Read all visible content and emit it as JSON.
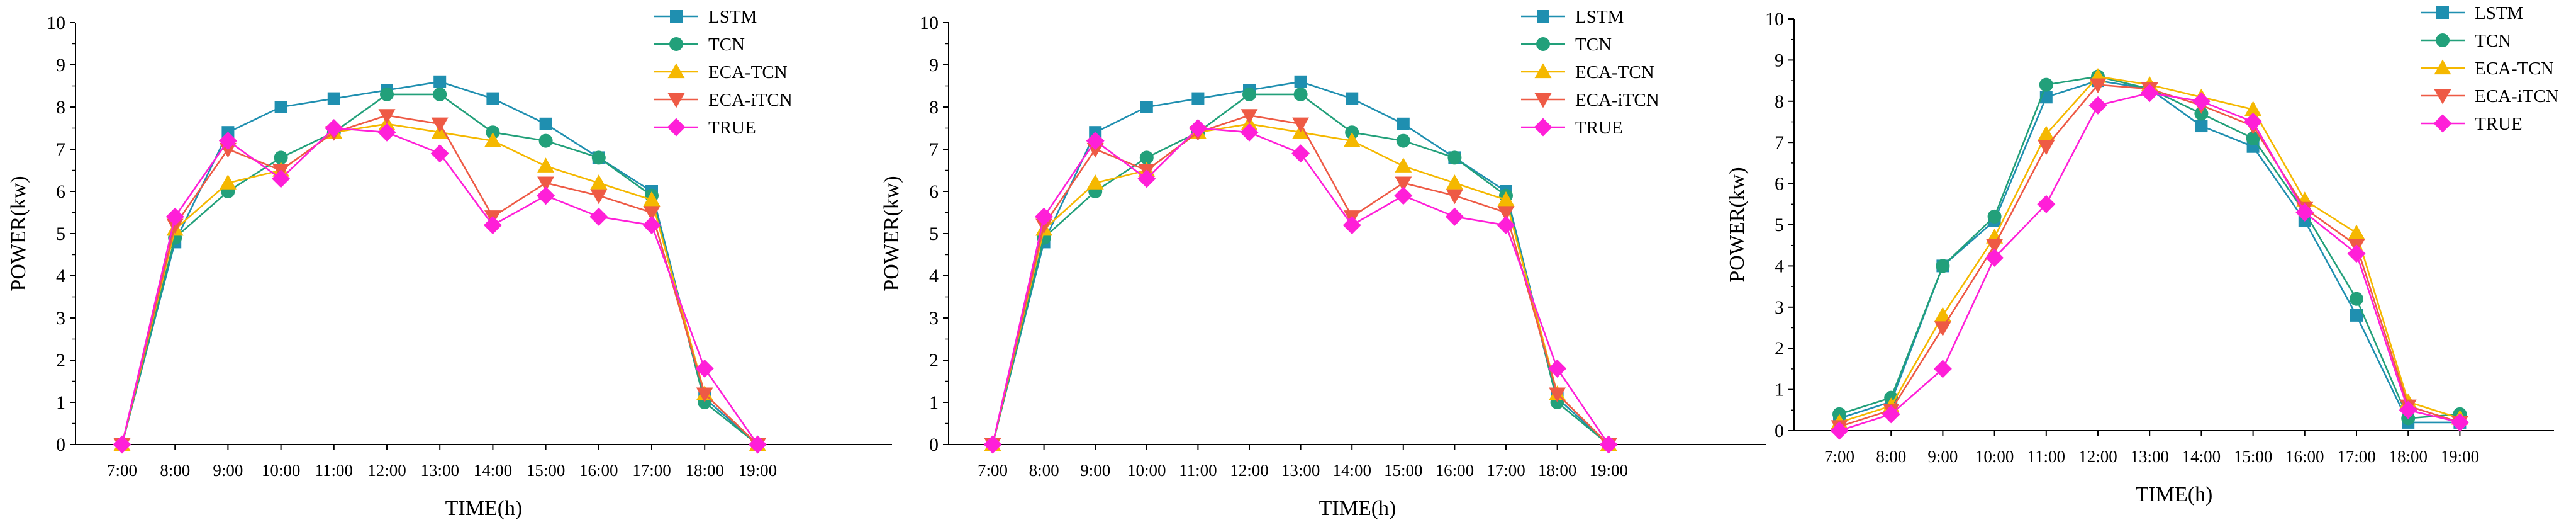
{
  "chart_data": [
    {
      "type": "line",
      "title": "",
      "xlabel": "TIME(h)",
      "ylabel": "POWER(kw)",
      "ylim": [
        0,
        10
      ],
      "yticks": [
        0,
        1,
        2,
        3,
        4,
        5,
        6,
        7,
        8,
        9,
        10
      ],
      "categories": [
        "7:00",
        "8:00",
        "9:00",
        "10:00",
        "11:00",
        "12:00",
        "13:00",
        "14:00",
        "15:00",
        "16:00",
        "17:00",
        "18:00",
        "19:00"
      ],
      "legend_position": "top-right",
      "series": [
        {
          "name": "LSTM",
          "color": "#1f8fb0",
          "marker": "square",
          "values": [
            0,
            4.8,
            7.4,
            8.0,
            8.2,
            8.4,
            8.6,
            8.2,
            7.6,
            6.8,
            6.0,
            1.1,
            0
          ]
        },
        {
          "name": "TCN",
          "color": "#22a07a",
          "marker": "circle",
          "values": [
            0,
            4.9,
            6.0,
            6.8,
            7.4,
            8.3,
            8.3,
            7.4,
            7.2,
            6.8,
            5.9,
            1.0,
            0
          ]
        },
        {
          "name": "ECA-TCN",
          "color": "#f5b800",
          "marker": "triangle-up",
          "values": [
            0,
            5.1,
            6.2,
            6.5,
            7.4,
            7.6,
            7.4,
            7.2,
            6.6,
            6.2,
            5.8,
            1.2,
            0
          ]
        },
        {
          "name": "ECA-iTCN",
          "color": "#ee5a45",
          "marker": "triangle-down",
          "values": [
            0,
            5.2,
            7.0,
            6.5,
            7.4,
            7.8,
            7.6,
            5.4,
            6.2,
            5.9,
            5.5,
            1.2,
            0
          ]
        },
        {
          "name": "TRUE",
          "color": "#ff1fd8",
          "marker": "diamond",
          "values": [
            0,
            5.4,
            7.2,
            6.3,
            7.5,
            7.4,
            6.9,
            5.2,
            5.9,
            5.4,
            5.2,
            1.8,
            0
          ]
        }
      ]
    },
    {
      "type": "line",
      "title": "",
      "xlabel": "TIME(h)",
      "ylabel": "POWER(kw)",
      "ylim": [
        0,
        10
      ],
      "yticks": [
        0,
        1,
        2,
        3,
        4,
        5,
        6,
        7,
        8,
        9,
        10
      ],
      "categories": [
        "7:00",
        "8:00",
        "9:00",
        "10:00",
        "11:00",
        "12:00",
        "13:00",
        "14:00",
        "15:00",
        "16:00",
        "17:00",
        "18:00",
        "19:00"
      ],
      "legend_position": "top-right",
      "series": [
        {
          "name": "LSTM",
          "color": "#1f8fb0",
          "marker": "square",
          "values": [
            0,
            4.8,
            7.4,
            8.0,
            8.2,
            8.4,
            8.6,
            8.2,
            7.6,
            6.8,
            6.0,
            1.1,
            0
          ]
        },
        {
          "name": "TCN",
          "color": "#22a07a",
          "marker": "circle",
          "values": [
            0,
            4.9,
            6.0,
            6.8,
            7.4,
            8.3,
            8.3,
            7.4,
            7.2,
            6.8,
            5.9,
            1.0,
            0
          ]
        },
        {
          "name": "ECA-TCN",
          "color": "#f5b800",
          "marker": "triangle-up",
          "values": [
            0,
            5.1,
            6.2,
            6.5,
            7.4,
            7.6,
            7.4,
            7.2,
            6.6,
            6.2,
            5.8,
            1.2,
            0
          ]
        },
        {
          "name": "ECA-iTCN",
          "color": "#ee5a45",
          "marker": "triangle-down",
          "values": [
            0,
            5.2,
            7.0,
            6.5,
            7.4,
            7.8,
            7.6,
            5.4,
            6.2,
            5.9,
            5.5,
            1.2,
            0
          ]
        },
        {
          "name": "TRUE",
          "color": "#ff1fd8",
          "marker": "diamond",
          "values": [
            0,
            5.4,
            7.2,
            6.3,
            7.5,
            7.4,
            6.9,
            5.2,
            5.9,
            5.4,
            5.2,
            1.8,
            0
          ]
        }
      ]
    },
    {
      "type": "line",
      "title": "",
      "xlabel": "TIME(h)",
      "ylabel": "POWER(kw)",
      "ylim": [
        0,
        10
      ],
      "yticks": [
        0,
        1,
        2,
        3,
        4,
        5,
        6,
        7,
        8,
        9,
        10
      ],
      "categories": [
        "7:00",
        "8:00",
        "9:00",
        "10:00",
        "11:00",
        "12:00",
        "13:00",
        "14:00",
        "15:00",
        "16:00",
        "17:00",
        "18:00",
        "19:00"
      ],
      "legend_position": "top-right",
      "series": [
        {
          "name": "LSTM",
          "color": "#1f8fb0",
          "marker": "square",
          "values": [
            0.3,
            0.7,
            4.0,
            5.1,
            8.1,
            8.5,
            8.3,
            7.4,
            6.9,
            5.1,
            2.8,
            0.2,
            0.2
          ]
        },
        {
          "name": "TCN",
          "color": "#22a07a",
          "marker": "circle",
          "values": [
            0.4,
            0.8,
            4.0,
            5.2,
            8.4,
            8.6,
            8.3,
            7.7,
            7.1,
            5.3,
            3.2,
            0.3,
            0.4
          ]
        },
        {
          "name": "ECA-TCN",
          "color": "#f5b800",
          "marker": "triangle-up",
          "values": [
            0.2,
            0.6,
            2.8,
            4.7,
            7.2,
            8.6,
            8.4,
            8.1,
            7.8,
            5.6,
            4.8,
            0.7,
            0.3
          ]
        },
        {
          "name": "ECA-iTCN",
          "color": "#ee5a45",
          "marker": "triangle-down",
          "values": [
            0.1,
            0.5,
            2.5,
            4.5,
            6.9,
            8.4,
            8.3,
            7.9,
            7.4,
            5.4,
            4.5,
            0.6,
            0.2
          ]
        },
        {
          "name": "TRUE",
          "color": "#ff1fd8",
          "marker": "diamond",
          "values": [
            0.0,
            0.4,
            1.5,
            4.2,
            5.5,
            7.9,
            8.2,
            8.0,
            7.5,
            5.3,
            4.3,
            0.5,
            0.2
          ]
        }
      ]
    }
  ]
}
